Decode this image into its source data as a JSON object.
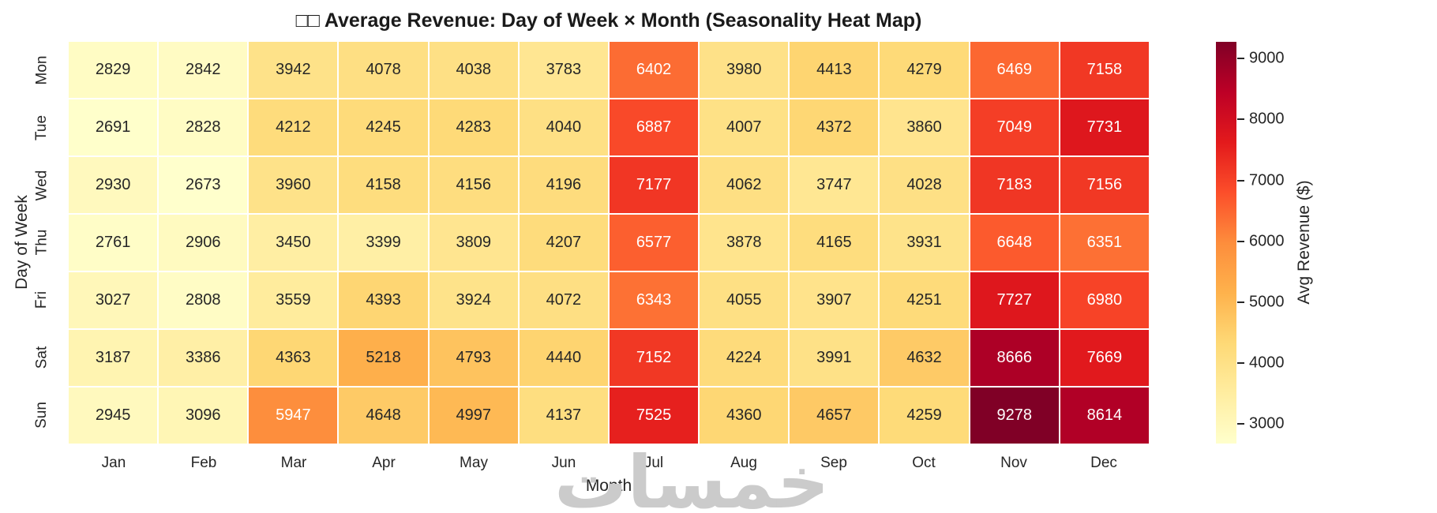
{
  "title": "□□ Average Revenue: Day of Week × Month (Seasonality Heat Map)",
  "watermark": "خمسات",
  "chart_data": {
    "type": "heatmap",
    "title": "□□ Average Revenue: Day of Week × Month (Seasonality Heat Map)",
    "xlabel": "Month",
    "ylabel": "Day of Week",
    "x_categories": [
      "Jan",
      "Feb",
      "Mar",
      "Apr",
      "May",
      "Jun",
      "Jul",
      "Aug",
      "Sep",
      "Oct",
      "Nov",
      "Dec"
    ],
    "y_categories": [
      "Mon",
      "Tue",
      "Wed",
      "Thu",
      "Fri",
      "Sat",
      "Sun"
    ],
    "values": [
      [
        2829,
        2842,
        3942,
        4078,
        4038,
        3783,
        6402,
        3980,
        4413,
        4279,
        6469,
        7158
      ],
      [
        2691,
        2828,
        4212,
        4245,
        4283,
        4040,
        6887,
        4007,
        4372,
        3860,
        7049,
        7731
      ],
      [
        2930,
        2673,
        3960,
        4158,
        4156,
        4196,
        7177,
        4062,
        3747,
        4028,
        7183,
        7156
      ],
      [
        2761,
        2906,
        3450,
        3399,
        3809,
        4207,
        6577,
        3878,
        4165,
        3931,
        6648,
        6351
      ],
      [
        3027,
        2808,
        3559,
        4393,
        3924,
        4072,
        6343,
        4055,
        3907,
        4251,
        7727,
        6980
      ],
      [
        3187,
        3386,
        4363,
        5218,
        4793,
        4440,
        7152,
        4224,
        3991,
        4632,
        8666,
        7669
      ],
      [
        2945,
        3096,
        5947,
        4648,
        4997,
        4137,
        7525,
        4360,
        4657,
        4259,
        9278,
        8614
      ]
    ],
    "annotated": true,
    "grid_line_color": "#ffffff",
    "cell_text_dark": "#262626",
    "cell_text_light": "#ffffff",
    "colorbar": {
      "label": "Avg Revenue ($)",
      "ticks": [
        3000,
        4000,
        5000,
        6000,
        7000,
        8000,
        9000
      ],
      "vmin": 2673,
      "vmax": 9278,
      "colormap": "YlOrRd",
      "colormap_stops": [
        "#ffffcc",
        "#ffeda0",
        "#fed976",
        "#feb24c",
        "#fd8d3c",
        "#fc4e2a",
        "#e31a1c",
        "#bd0026",
        "#800026"
      ],
      "position": "right"
    }
  }
}
